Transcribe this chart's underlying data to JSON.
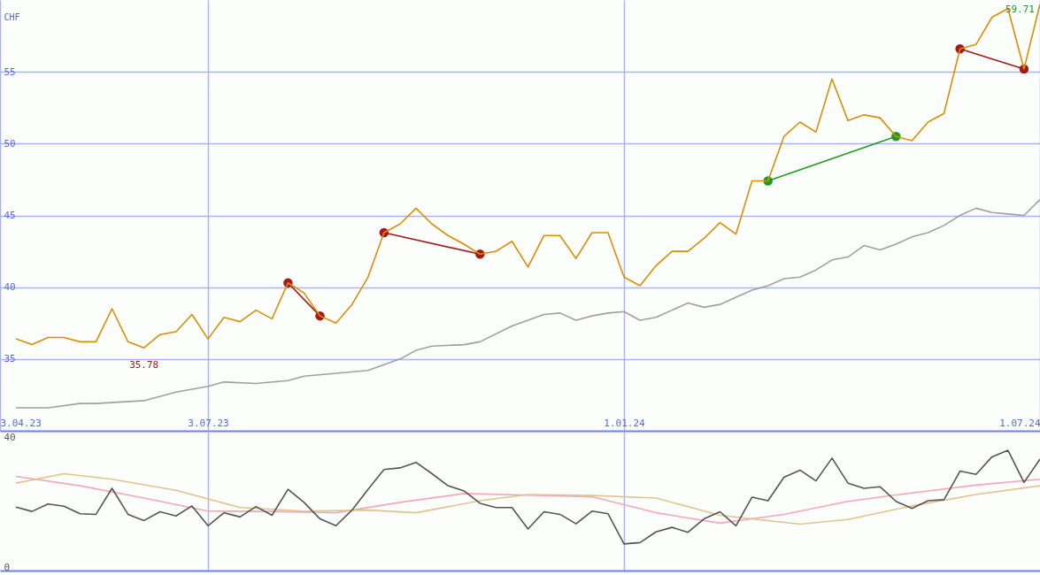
{
  "chart_data": [
    {
      "type": "line",
      "ylabel": "CHF",
      "x": [
        "2023-04-10",
        "2023-04-17",
        "2023-04-24",
        "2023-05-01",
        "2023-05-08",
        "2023-05-15",
        "2023-05-22",
        "2023-05-29",
        "2023-06-05",
        "2023-06-12",
        "2023-06-19",
        "2023-06-26",
        "2023-07-03",
        "2023-07-10",
        "2023-07-17",
        "2023-07-24",
        "2023-07-31",
        "2023-08-07",
        "2023-08-14",
        "2023-08-21",
        "2023-08-28",
        "2023-09-04",
        "2023-09-11",
        "2023-09-18",
        "2023-09-25",
        "2023-10-02",
        "2023-10-09",
        "2023-10-16",
        "2023-10-23",
        "2023-10-30",
        "2023-11-06",
        "2023-11-13",
        "2023-11-20",
        "2023-11-27",
        "2023-12-04",
        "2023-12-11",
        "2023-12-18",
        "2023-12-25",
        "2024-01-01",
        "2024-01-08",
        "2024-01-15",
        "2024-01-22",
        "2024-01-29",
        "2024-02-05",
        "2024-02-12",
        "2024-02-19",
        "2024-02-26",
        "2024-03-04",
        "2024-03-11",
        "2024-03-18",
        "2024-03-25",
        "2024-04-01",
        "2024-04-08",
        "2024-04-15",
        "2024-04-22",
        "2024-04-29",
        "2024-05-06",
        "2024-05-13",
        "2024-05-20",
        "2024-05-27",
        "2024-06-03",
        "2024-06-10",
        "2024-06-17",
        "2024-06-24",
        "2024-07-01"
      ],
      "series": [
        {
          "color": "#a0a0a0",
          "x": [
            "2023-04-10",
            "2023-04-24",
            "2023-05-08",
            "2023-05-15",
            "2023-06-05",
            "2023-06-19",
            "2023-07-03",
            "2023-07-10",
            "2023-07-24",
            "2023-08-07",
            "2023-08-14",
            "2023-08-28",
            "2023-09-11",
            "2023-09-25",
            "2023-10-02",
            "2023-10-09",
            "2023-10-23",
            "2023-10-30",
            "2023-11-13",
            "2023-11-20",
            "2023-11-27",
            "2023-12-04",
            "2023-12-11",
            "2023-12-18",
            "2023-12-25",
            "2024-01-01",
            "2024-01-08",
            "2024-01-15",
            "2024-01-22",
            "2024-01-29",
            "2024-02-05",
            "2024-02-12",
            "2024-02-19",
            "2024-02-26",
            "2024-03-04",
            "2024-03-11",
            "2024-03-18",
            "2024-03-25",
            "2024-04-01",
            "2024-04-08",
            "2024-04-15",
            "2024-04-22",
            "2024-04-29",
            "2024-05-06",
            "2024-05-13",
            "2024-05-20",
            "2024-05-27",
            "2024-06-03",
            "2024-06-10",
            "2024-06-17",
            "2024-06-24",
            "2024-07-01"
          ],
          "values": [
            31.6,
            31.6,
            31.9,
            31.9,
            32.1,
            32.7,
            33.1,
            33.4,
            33.3,
            33.5,
            33.8,
            34.0,
            34.2,
            35.0,
            35.6,
            35.9,
            36.0,
            36.2,
            37.3,
            37.7,
            38.1,
            38.2,
            37.7,
            38.0,
            38.2,
            38.3,
            37.7,
            37.9,
            38.4,
            38.9,
            38.6,
            38.8,
            39.3,
            39.8,
            40.1,
            40.6,
            40.7,
            41.2,
            41.9,
            42.1,
            42.9,
            42.6,
            43.0,
            43.5,
            43.8,
            44.3,
            45.0,
            45.5,
            45.2,
            45.1,
            45.0,
            46.1
          ]
        },
        {
          "color": "#d98e04",
          "values": [
            36.4,
            36.0,
            36.5,
            36.5,
            36.2,
            36.2,
            38.5,
            36.2,
            35.78,
            36.7,
            36.9,
            38.1,
            36.4,
            37.9,
            37.6,
            38.4,
            37.8,
            40.3,
            39.6,
            38.0,
            37.5,
            38.8,
            40.7,
            43.8,
            44.4,
            45.5,
            44.4,
            43.6,
            43.0,
            42.3,
            42.5,
            43.2,
            41.4,
            43.6,
            43.6,
            42.0,
            43.8,
            43.8,
            40.7,
            40.1,
            41.5,
            42.5,
            42.5,
            43.4,
            44.5,
            43.7,
            47.4,
            47.4,
            50.5,
            51.5,
            50.8,
            54.5,
            51.6,
            52.0,
            51.8,
            50.5,
            50.2,
            51.5,
            52.1,
            56.6,
            56.9,
            58.8,
            59.4,
            55.2,
            59.71
          ]
        },
        {
          "color": "#a01c1c",
          "marker": "circle",
          "x": [
            "2023-08-07",
            "2023-08-21"
          ],
          "values": [
            40.3,
            38.0
          ]
        },
        {
          "color": "#a01c1c",
          "marker": "circle",
          "x": [
            "2023-09-18",
            "2023-10-30"
          ],
          "values": [
            43.8,
            42.3
          ]
        },
        {
          "color": "#229922",
          "marker": "circle",
          "x": [
            "2024-03-04",
            "2024-04-29"
          ],
          "values": [
            47.4,
            50.5
          ]
        },
        {
          "color": "#a01c1c",
          "marker": "circle",
          "x": [
            "2024-05-27",
            "2024-06-24"
          ],
          "values": [
            56.6,
            55.2
          ]
        }
      ],
      "annotations": [
        {
          "text": "35.78",
          "x": "2023-06-05",
          "y": 35.78
        },
        {
          "text": "59.71",
          "x": "2024-07-01",
          "y": 59.71
        }
      ],
      "xlim": [
        "2023-04-03",
        "2024-07-01"
      ],
      "xticks": [
        {
          "value": "2023-04-03",
          "label": "3.04.23"
        },
        {
          "value": "2023-07-03",
          "label": "3.07.23"
        },
        {
          "value": "2024-01-01",
          "label": "1.01.24"
        },
        {
          "value": "2024-07-01",
          "label": "1.07.24"
        }
      ],
      "ylim": [
        30,
        60
      ],
      "yticks": [
        35,
        40,
        45,
        50,
        55
      ],
      "grid": true
    },
    {
      "type": "line",
      "x": [
        "2023-04-10",
        "2023-04-17",
        "2023-04-24",
        "2023-05-01",
        "2023-05-08",
        "2023-05-15",
        "2023-05-22",
        "2023-05-29",
        "2023-06-05",
        "2023-06-12",
        "2023-06-19",
        "2023-06-26",
        "2023-07-03",
        "2023-07-10",
        "2023-07-17",
        "2023-07-24",
        "2023-07-31",
        "2023-08-07",
        "2023-08-14",
        "2023-08-21",
        "2023-08-28",
        "2023-09-04",
        "2023-09-11",
        "2023-09-18",
        "2023-09-25",
        "2023-10-02",
        "2023-10-09",
        "2023-10-16",
        "2023-10-23",
        "2023-10-30",
        "2023-11-06",
        "2023-11-13",
        "2023-11-20",
        "2023-11-27",
        "2023-12-04",
        "2023-12-11",
        "2023-12-18",
        "2023-12-25",
        "2024-01-01",
        "2024-01-08",
        "2024-01-15",
        "2024-01-22",
        "2024-01-29",
        "2024-02-05",
        "2024-02-12",
        "2024-02-19",
        "2024-02-26",
        "2024-03-04",
        "2024-03-11",
        "2024-03-18",
        "2024-03-25",
        "2024-04-01",
        "2024-04-08",
        "2024-04-15",
        "2024-04-22",
        "2024-04-29",
        "2024-05-06",
        "2024-05-13",
        "2024-05-20",
        "2024-05-27",
        "2024-06-03",
        "2024-06-10",
        "2024-06-17",
        "2024-06-24",
        "2024-07-01"
      ],
      "series": [
        {
          "color": "#f4a6c0",
          "x": [
            "2023-04-10",
            "2023-05-08",
            "2023-06-05",
            "2023-07-03",
            "2023-07-31",
            "2023-08-28",
            "2023-09-25",
            "2023-10-23",
            "2023-11-20",
            "2023-12-18",
            "2024-01-15",
            "2024-02-12",
            "2024-03-11",
            "2024-04-08",
            "2024-05-06",
            "2024-06-03",
            "2024-07-01"
          ],
          "values": [
            28.0,
            25.1,
            21.3,
            17.3,
            17.2,
            16.8,
            20.0,
            22.7,
            22.2,
            21.7,
            16.8,
            13.6,
            16.3,
            20.3,
            22.9,
            25.3,
            27.1
          ]
        },
        {
          "color": "#e0c48c",
          "x": [
            "2023-04-10",
            "2023-05-01",
            "2023-05-22",
            "2023-06-19",
            "2023-07-17",
            "2023-08-14",
            "2023-09-11",
            "2023-10-02",
            "2023-10-30",
            "2023-11-20",
            "2023-12-18",
            "2024-01-15",
            "2024-02-12",
            "2024-03-18",
            "2024-04-08",
            "2024-05-06",
            "2024-06-03",
            "2024-07-01"
          ],
          "values": [
            25.9,
            28.8,
            27.1,
            23.7,
            18.4,
            17.3,
            17.6,
            16.8,
            20.5,
            22.4,
            22.1,
            21.3,
            16.0,
            13.3,
            14.7,
            18.9,
            22.4,
            25.1
          ]
        },
        {
          "color": "#555555",
          "values": [
            18.5,
            17.2,
            19.5,
            18.8,
            16.5,
            16.3,
            24.3,
            16.3,
            14.4,
            17.1,
            15.8,
            18.9,
            12.8,
            16.8,
            15.5,
            18.7,
            16.0,
            24.0,
            20.0,
            14.9,
            12.8,
            17.6,
            24.0,
            30.1,
            30.6,
            32.3,
            28.8,
            25.1,
            23.5,
            19.7,
            18.4,
            18.4,
            11.8,
            17.1,
            16.3,
            13.4,
            17.3,
            16.5,
            7.2,
            7.6,
            10.9,
            12.3,
            10.8,
            14.9,
            17.1,
            12.8,
            21.6,
            20.5,
            27.7,
            29.9,
            26.6,
            33.6,
            25.9,
            24.3,
            24.8,
            20.3,
            18.1,
            20.5,
            20.8,
            29.6,
            28.6,
            34.0,
            36.0,
            26.1,
            33.3
          ]
        }
      ],
      "xlim": [
        "2023-04-03",
        "2024-07-01"
      ],
      "xticks": [
        {
          "value": "2023-07-03",
          "label": null
        },
        {
          "value": "2024-01-01",
          "label": null
        }
      ],
      "ylim": [
        -1,
        42
      ],
      "yticks": [
        0,
        40
      ],
      "grid": "x",
      "tick_labels": "y"
    }
  ]
}
